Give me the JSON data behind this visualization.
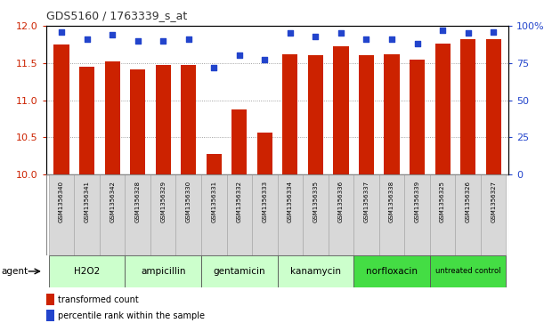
{
  "title": "GDS5160 / 1763339_s_at",
  "samples": [
    "GSM1356340",
    "GSM1356341",
    "GSM1356342",
    "GSM1356328",
    "GSM1356329",
    "GSM1356330",
    "GSM1356331",
    "GSM1356332",
    "GSM1356333",
    "GSM1356334",
    "GSM1356335",
    "GSM1356336",
    "GSM1356337",
    "GSM1356338",
    "GSM1356339",
    "GSM1356325",
    "GSM1356326",
    "GSM1356327"
  ],
  "transformed_counts": [
    11.75,
    11.45,
    11.52,
    11.41,
    11.47,
    11.47,
    10.28,
    10.88,
    10.56,
    11.62,
    11.61,
    11.72,
    11.61,
    11.62,
    11.55,
    11.76,
    11.82,
    11.82
  ],
  "percentile_ranks": [
    96,
    91,
    94,
    90,
    90,
    91,
    72,
    80,
    77,
    95,
    93,
    95,
    91,
    91,
    88,
    97,
    95,
    96
  ],
  "groups": [
    {
      "label": "H2O2",
      "indices": [
        0,
        1,
        2
      ],
      "color": "#ccffcc"
    },
    {
      "label": "ampicillin",
      "indices": [
        3,
        4,
        5
      ],
      "color": "#ccffcc"
    },
    {
      "label": "gentamicin",
      "indices": [
        6,
        7,
        8
      ],
      "color": "#ccffcc"
    },
    {
      "label": "kanamycin",
      "indices": [
        9,
        10,
        11
      ],
      "color": "#ccffcc"
    },
    {
      "label": "norfloxacin",
      "indices": [
        12,
        13,
        14
      ],
      "color": "#44dd44"
    },
    {
      "label": "untreated control",
      "indices": [
        15,
        16,
        17
      ],
      "color": "#44dd44"
    }
  ],
  "ylim_left": [
    10,
    12
  ],
  "yticks_left": [
    10,
    10.5,
    11,
    11.5,
    12
  ],
  "ylim_right": [
    0,
    100
  ],
  "yticks_right": [
    0,
    25,
    50,
    75,
    100
  ],
  "bar_color": "#cc2200",
  "dot_color": "#2244cc",
  "bar_width": 0.6,
  "tick_label_color_left": "#cc2200",
  "tick_label_color_right": "#2244cc"
}
